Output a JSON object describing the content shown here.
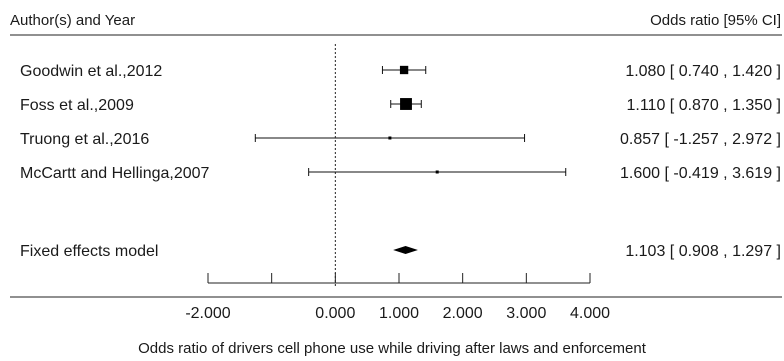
{
  "chart_data": {
    "type": "forest",
    "header": {
      "left": "Author(s) and Year",
      "right": "Odds ratio [95% CI]"
    },
    "studies": [
      {
        "label": "Goodwin et al.,2012",
        "estimate": 1.08,
        "lower": 0.74,
        "upper": 1.42,
        "ci_text": "1.080 [  0.740 , 1.420 ]",
        "weight": 0.27
      },
      {
        "label": "Foss et al.,2009",
        "estimate": 1.11,
        "lower": 0.87,
        "upper": 1.35,
        "ci_text": "1.110 [  0.870 , 1.350 ]",
        "weight": 0.55
      },
      {
        "label": "Truong et al.,2016",
        "estimate": 0.857,
        "lower": -1.257,
        "upper": 2.972,
        "ci_text": "0.857 [ -1.257 , 2.972 ]",
        "weight": 0.004
      },
      {
        "label": "McCartt and Hellinga,2007",
        "estimate": 1.6,
        "lower": -0.419,
        "upper": 3.619,
        "ci_text": "1.600 [ -0.419 , 3.619 ]",
        "weight": 0.004
      }
    ],
    "summary": {
      "label": "Fixed effects model",
      "estimate": 1.103,
      "lower": 0.908,
      "upper": 1.297,
      "ci_text": "1.103 [  0.908 , 1.297 ]"
    },
    "reference_line": 0.0,
    "x_ticks": [
      -2.0,
      -1.0,
      0.0,
      1.0,
      2.0,
      3.0,
      4.0
    ],
    "x_tick_labels": [
      "-2.000",
      "",
      "0.000",
      "1.000",
      "2.000",
      "3.000",
      "4.000"
    ],
    "xlim": [
      -2.0,
      4.0
    ],
    "xlabel": "Odds ratio of drivers cell phone use while driving after laws and enforcement"
  }
}
